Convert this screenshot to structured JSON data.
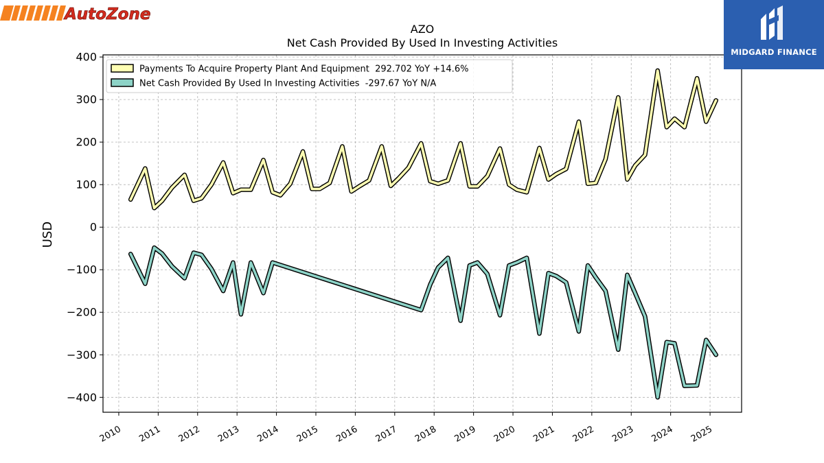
{
  "brand": {
    "left_logo_text": "AutoZone",
    "right_logo_text": "MIDGARD FINANCE",
    "left_logo_colors": {
      "stripe": "#f58220",
      "text": "#d52b1e"
    },
    "right_logo_color": "#2b5fb0"
  },
  "chart_data": {
    "type": "line",
    "title": "AZO",
    "subtitle": "Net Cash Provided By Used In Investing Activities",
    "xlabel": "",
    "ylabel": "USD",
    "xlim": [
      2009.6,
      2025.8
    ],
    "ylim": [
      -435,
      405
    ],
    "yticks": [
      -400,
      -300,
      -200,
      -100,
      0,
      100,
      200,
      300,
      400
    ],
    "ytick_labels": [
      "−400",
      "−300",
      "−200",
      "−100",
      "0",
      "100",
      "200",
      "300",
      "400"
    ],
    "xticks": [
      2010,
      2011,
      2012,
      2013,
      2014,
      2015,
      2016,
      2017,
      2018,
      2019,
      2020,
      2021,
      2022,
      2023,
      2024,
      2025
    ],
    "xtick_labels": [
      "2010",
      "2011",
      "2012",
      "2013",
      "2014",
      "2015",
      "2016",
      "2017",
      "2018",
      "2019",
      "2020",
      "2021",
      "2022",
      "2023",
      "2024",
      "2025"
    ],
    "grid": true,
    "legend_position": "top-left",
    "series": [
      {
        "name": "Payments To Acquire Property Plant And Equipment  292.702 YoY +14.6%",
        "color": "#ffffb3",
        "x": [
          2010.3,
          2010.67,
          2010.9,
          2011.1,
          2011.35,
          2011.67,
          2011.9,
          2012.1,
          2012.35,
          2012.65,
          2012.9,
          2013.1,
          2013.35,
          2013.67,
          2013.9,
          2014.1,
          2014.35,
          2014.67,
          2014.9,
          2015.1,
          2015.35,
          2015.67,
          2015.9,
          2016.1,
          2016.35,
          2016.67,
          2016.9,
          2017.1,
          2017.35,
          2017.67,
          2017.9,
          2018.1,
          2018.35,
          2018.67,
          2018.9,
          2019.1,
          2019.35,
          2019.67,
          2019.9,
          2020.1,
          2020.35,
          2020.67,
          2020.9,
          2021.1,
          2021.35,
          2021.67,
          2021.9,
          2022.1,
          2022.35,
          2022.67,
          2022.9,
          2023.1,
          2023.35,
          2023.67,
          2023.9,
          2024.1,
          2024.35,
          2024.67,
          2024.9,
          2025.15
        ],
        "y": [
          65,
          138,
          45,
          62,
          93,
          123,
          62,
          68,
          100,
          152,
          80,
          88,
          88,
          158,
          82,
          75,
          102,
          178,
          90,
          90,
          104,
          190,
          84,
          96,
          110,
          190,
          97,
          115,
          140,
          197,
          108,
          102,
          110,
          197,
          96,
          96,
          120,
          185,
          100,
          88,
          82,
          186,
          112,
          125,
          137,
          248,
          102,
          104,
          160,
          305,
          112,
          145,
          170,
          368,
          235,
          255,
          235,
          350,
          248,
          298
        ]
      },
      {
        "name": "Net Cash Provided By Used In Investing Activities  -297.67 YoY N/A",
        "color": "#8dd3c7",
        "x": [
          2010.3,
          2010.67,
          2010.9,
          2011.1,
          2011.35,
          2011.67,
          2011.9,
          2012.1,
          2012.35,
          2012.65,
          2012.9,
          2013.1,
          2013.35,
          2013.67,
          2013.9,
          2017.67,
          2017.9,
          2018.1,
          2018.35,
          2018.67,
          2018.9,
          2019.1,
          2019.35,
          2019.67,
          2019.9,
          2020.1,
          2020.35,
          2020.67,
          2020.9,
          2021.1,
          2021.35,
          2021.67,
          2021.9,
          2022.1,
          2022.35,
          2022.67,
          2022.9,
          2023.1,
          2023.35,
          2023.67,
          2023.9,
          2024.1,
          2024.35,
          2024.67,
          2024.9,
          2025.15
        ],
        "y": [
          -63,
          -133,
          -48,
          -62,
          -92,
          -120,
          -60,
          -65,
          -98,
          -150,
          -83,
          -205,
          -83,
          -155,
          -83,
          -195,
          -135,
          -95,
          -72,
          -220,
          -90,
          -83,
          -110,
          -207,
          -90,
          -83,
          -72,
          -250,
          -108,
          -115,
          -130,
          -245,
          -90,
          -118,
          -150,
          -288,
          -112,
          -155,
          -210,
          -400,
          -270,
          -273,
          -373,
          -372,
          -265,
          -300
        ]
      }
    ]
  }
}
